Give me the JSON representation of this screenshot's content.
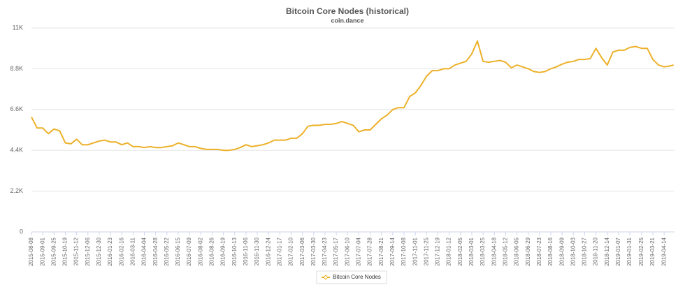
{
  "chart_data": {
    "type": "line",
    "title": "Bitcoin Core Nodes (historical)",
    "subtitle": "coin.dance",
    "x": [
      "2015-08-08",
      "2015-08-20",
      "2015-09-01",
      "2015-09-13",
      "2015-09-25",
      "2015-10-07",
      "2015-10-19",
      "2015-10-31",
      "2015-11-12",
      "2015-11-24",
      "2015-12-06",
      "2015-12-18",
      "2015-12-30",
      "2016-01-11",
      "2016-01-23",
      "2016-02-04",
      "2016-02-16",
      "2016-02-28",
      "2016-03-11",
      "2016-03-23",
      "2016-04-04",
      "2016-04-16",
      "2016-04-28",
      "2016-05-10",
      "2016-05-22",
      "2016-06-03",
      "2016-06-15",
      "2016-06-27",
      "2016-07-09",
      "2016-07-21",
      "2016-08-02",
      "2016-08-14",
      "2016-08-26",
      "2016-09-07",
      "2016-09-19",
      "2016-10-01",
      "2016-10-13",
      "2016-10-25",
      "2016-11-06",
      "2016-11-18",
      "2016-11-30",
      "2016-12-12",
      "2016-12-24",
      "2017-01-05",
      "2017-01-17",
      "2017-01-29",
      "2017-02-10",
      "2017-02-22",
      "2017-03-06",
      "2017-03-18",
      "2017-03-30",
      "2017-04-11",
      "2017-04-23",
      "2017-05-05",
      "2017-05-17",
      "2017-05-29",
      "2017-06-10",
      "2017-06-22",
      "2017-07-04",
      "2017-07-16",
      "2017-07-28",
      "2017-08-09",
      "2017-08-21",
      "2017-09-02",
      "2017-09-14",
      "2017-09-26",
      "2017-10-08",
      "2017-10-20",
      "2017-11-01",
      "2017-11-13",
      "2017-11-25",
      "2017-12-07",
      "2017-12-19",
      "2017-12-31",
      "2018-01-12",
      "2018-01-24",
      "2018-02-05",
      "2018-02-17",
      "2018-03-01",
      "2018-03-13",
      "2018-03-25",
      "2018-04-06",
      "2018-04-18",
      "2018-04-30",
      "2018-05-12",
      "2018-05-24",
      "2018-06-05",
      "2018-06-17",
      "2018-06-29",
      "2018-07-11",
      "2018-07-23",
      "2018-08-04",
      "2018-08-16",
      "2018-08-28",
      "2018-09-09",
      "2018-09-21",
      "2018-10-03",
      "2018-10-15",
      "2018-10-27",
      "2018-11-08",
      "2018-11-20",
      "2018-12-02",
      "2018-12-14",
      "2018-12-26",
      "2019-01-07",
      "2019-01-19",
      "2019-01-31",
      "2019-02-12",
      "2019-02-25",
      "2019-03-09",
      "2019-03-21",
      "2019-04-02",
      "2019-04-14",
      "2019-04-26",
      "2019-05-04"
    ],
    "series": [
      {
        "name": "Bitcoin Core Nodes",
        "color": "#ecb12a",
        "values": [
          6200,
          5600,
          5600,
          5300,
          5550,
          5450,
          4800,
          4750,
          5000,
          4700,
          4700,
          4800,
          4900,
          4950,
          4850,
          4850,
          4700,
          4800,
          4600,
          4600,
          4550,
          4600,
          4550,
          4550,
          4600,
          4650,
          4800,
          4700,
          4600,
          4600,
          4500,
          4450,
          4450,
          4450,
          4400,
          4400,
          4450,
          4550,
          4700,
          4600,
          4650,
          4700,
          4800,
          4950,
          4950,
          4950,
          5050,
          5050,
          5300,
          5700,
          5750,
          5750,
          5800,
          5800,
          5850,
          5950,
          5850,
          5750,
          5400,
          5500,
          5500,
          5800,
          6100,
          6300,
          6600,
          6700,
          6700,
          7300,
          7500,
          7900,
          8400,
          8700,
          8700,
          8800,
          8800,
          9000,
          9100,
          9200,
          9600,
          10300,
          9200,
          9150,
          9200,
          9250,
          9150,
          8850,
          9000,
          8900,
          8800,
          8650,
          8600,
          8650,
          8800,
          8900,
          9050,
          9150,
          9200,
          9300,
          9300,
          9350,
          9900,
          9400,
          9000,
          9700,
          9800,
          9800,
          9950,
          10000,
          9900,
          9900,
          9300,
          9000,
          8900,
          8950,
          9000
        ]
      }
    ],
    "xlim": [
      "2015-08-08",
      "2019-05-06"
    ],
    "xticks": [
      "2015-08-08",
      "2015-09-01",
      "2015-09-25",
      "2015-10-19",
      "2015-11-12",
      "2015-12-06",
      "2015-12-30",
      "2016-01-23",
      "2016-02-16",
      "2016-03-11",
      "2016-04-04",
      "2016-04-28",
      "2016-05-22",
      "2016-06-15",
      "2016-07-09",
      "2016-08-02",
      "2016-08-26",
      "2016-09-19",
      "2016-10-13",
      "2016-11-06",
      "2016-11-30",
      "2016-12-24",
      "2017-01-17",
      "2017-02-10",
      "2017-03-06",
      "2017-03-30",
      "2017-04-23",
      "2017-05-17",
      "2017-06-10",
      "2017-07-04",
      "2017-07-28",
      "2017-08-21",
      "2017-09-14",
      "2017-10-08",
      "2017-11-01",
      "2017-11-25",
      "2017-12-19",
      "2018-01-12",
      "2018-02-05",
      "2018-03-01",
      "2018-03-25",
      "2018-04-18",
      "2018-05-12",
      "2018-06-05",
      "2018-06-29",
      "2018-07-23",
      "2018-08-16",
      "2018-09-09",
      "2018-10-03",
      "2018-10-27",
      "2018-11-20",
      "2018-12-14",
      "2019-01-07",
      "2019-01-31",
      "2019-02-25",
      "2019-03-21",
      "2019-04-14"
    ],
    "ylim": [
      0,
      11000
    ],
    "yticks": [
      0,
      {
        "value": 2200,
        "label": "2.2K"
      },
      {
        "value": 4400,
        "label": "4.4K"
      },
      {
        "value": 6600,
        "label": "6.6K"
      },
      {
        "value": 8800,
        "label": "8.8K"
      },
      {
        "value": 11000,
        "label": "11K"
      }
    ],
    "grid": true
  }
}
